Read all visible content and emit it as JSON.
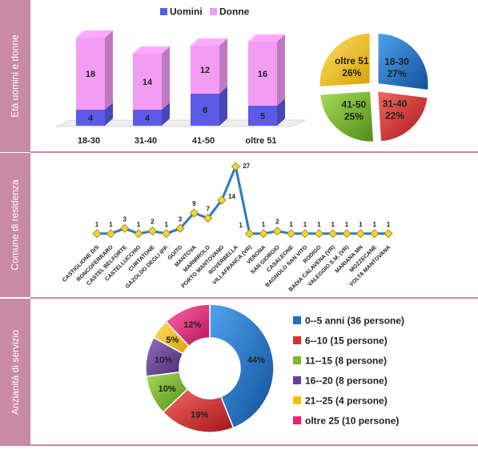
{
  "sections": [
    {
      "title": "Età uomini e donne"
    },
    {
      "title": "Comune di residenza"
    },
    {
      "title": "Anzianità di servizio"
    }
  ],
  "chart_data": [
    {
      "type": "bar",
      "stacked": true,
      "categories": [
        "18-30",
        "31-40",
        "41-50",
        "oltre 51"
      ],
      "series": [
        {
          "name": "Uomini",
          "values": [
            4,
            4,
            8,
            5
          ],
          "color": "#5b5be8"
        },
        {
          "name": "Donne",
          "values": [
            18,
            14,
            12,
            16
          ],
          "color": "#f39cf3"
        }
      ],
      "legend": "top"
    },
    {
      "type": "pie",
      "labels": [
        "18-30",
        "31-40",
        "41-50",
        "oltre 51"
      ],
      "values": [
        27,
        22,
        25,
        26
      ],
      "value_labels": [
        "27%",
        "22%",
        "25%",
        "26%"
      ],
      "colors": [
        "#1c6fc4",
        "#d9312c",
        "#7ab730",
        "#f3c20f"
      ]
    },
    {
      "type": "line",
      "categories": [
        "CASTIGLIONE D/S",
        "RONCOFERRARO",
        "CASTEL BELFORTE",
        "CASTELLUCCHIO",
        "CURTATONE",
        "GAZOLDO DEGLI IPP.",
        "GOITO",
        "MANTOVA",
        "MARMIROLO",
        "PORTO MANTOVANO",
        "ROVERBELLA",
        "VILLAFRANCA (VR)",
        "VERONA",
        "SAN GIORGIO",
        "CASALEONE",
        "BAGNOLO SAN VITO",
        "RODIGO",
        "BADIA CALAVENA (VR)",
        "VALEGGIO S.M. (VR)",
        "MARIANA MN",
        "MOZZECANE",
        "VOLTA MANTOVANA"
      ],
      "values": [
        1,
        1,
        3,
        1,
        2,
        1,
        3,
        9,
        7,
        14,
        27,
        1,
        1,
        2,
        1,
        1,
        1,
        1,
        1,
        1,
        1,
        1
      ],
      "ylim": [
        0,
        27
      ],
      "line_color": "#2b7bbf",
      "marker_color": "#f2d43a"
    },
    {
      "type": "pie",
      "donut": true,
      "labels": [
        "0--5 anni (36 persone)",
        "6--10 (15 persone)",
        "11--15 (8 persone)",
        "16--20 (8 persone)",
        "21--25 (4 persone)",
        "oltre 25 (10 persone)"
      ],
      "values": [
        44,
        19,
        10,
        10,
        5,
        12
      ],
      "value_labels": [
        "44%",
        "19%",
        "10%",
        "10%",
        "5%",
        "12%"
      ],
      "colors": [
        "#1c6fc4",
        "#d9312c",
        "#7ab730",
        "#6b3f96",
        "#f3c20f",
        "#ee1f7a"
      ],
      "legend": "right"
    }
  ]
}
